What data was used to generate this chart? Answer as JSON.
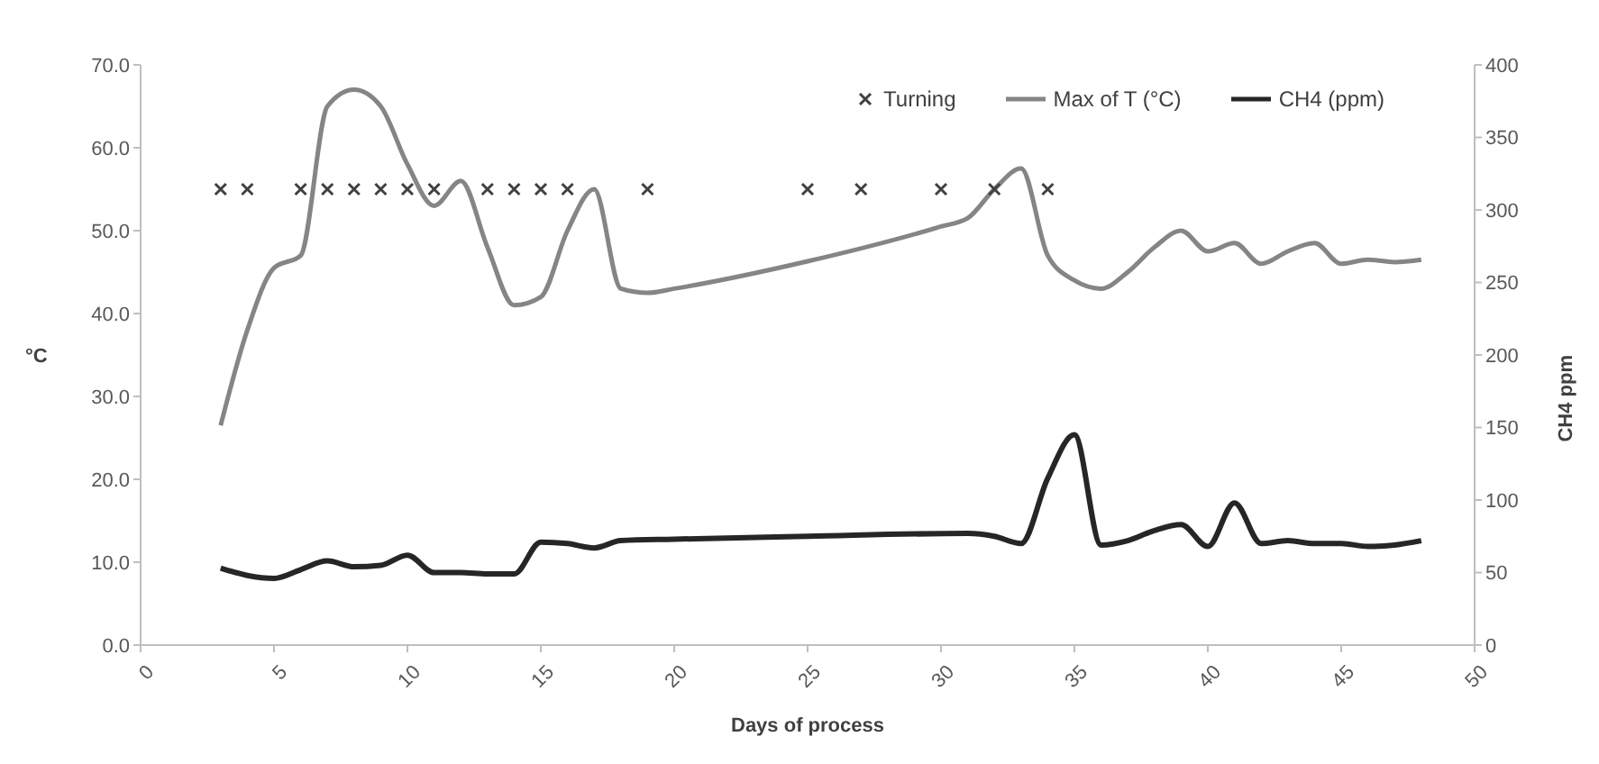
{
  "chart_data": {
    "type": "line",
    "xlabel": "Days of process",
    "ylabel": "°C",
    "y2label": "CH4 ppm",
    "legend": "top right",
    "grid": false,
    "xlim": [
      0,
      50
    ],
    "xticks": [
      0,
      5,
      10,
      15,
      20,
      25,
      30,
      35,
      40,
      45,
      50
    ],
    "ylim": [
      0,
      70
    ],
    "yticks": [
      {
        "value": 0,
        "label": "0.0"
      },
      {
        "value": 10,
        "label": "10.0"
      },
      {
        "value": 20,
        "label": "20.0"
      },
      {
        "value": 30,
        "label": "30.0"
      },
      {
        "value": 40,
        "label": "40.0"
      },
      {
        "value": 50,
        "label": "50.0"
      },
      {
        "value": 60,
        "label": "60.0"
      },
      {
        "value": 70,
        "label": "70.0"
      }
    ],
    "y2lim": [
      0,
      400
    ],
    "y2ticks": [
      0,
      50,
      100,
      150,
      200,
      250,
      300,
      350,
      400
    ],
    "series": [
      {
        "name": "Turning",
        "type": "scatter",
        "marker": "cross",
        "color": "#404040",
        "x": [
          3,
          4,
          6,
          7,
          8,
          9,
          10,
          11,
          13,
          14,
          15,
          16,
          19,
          25,
          27,
          30,
          32,
          34
        ],
        "values": [
          55,
          55,
          55,
          55,
          55,
          55,
          55,
          55,
          55,
          55,
          55,
          55,
          55,
          55,
          55,
          55,
          55,
          55
        ]
      },
      {
        "name": "Max of T (°C)",
        "color": "#858585",
        "x": [
          3,
          4,
          5,
          6,
          7,
          8,
          9,
          10,
          11,
          12,
          13,
          14,
          15,
          16,
          17,
          18,
          19,
          20,
          25,
          30,
          31,
          32,
          33,
          34,
          35,
          36,
          37,
          38,
          39,
          40,
          41,
          42,
          43,
          44,
          45,
          46,
          47,
          48
        ],
        "values": [
          26.5,
          38,
          45.5,
          47,
          65,
          67,
          65,
          58,
          53,
          56,
          48,
          41,
          42,
          50,
          55,
          43,
          42.5,
          43,
          46.3,
          50.5,
          51.5,
          55,
          57.5,
          47,
          44,
          43,
          45,
          48,
          50,
          47.5,
          48.5,
          46,
          47.5,
          48.5,
          46,
          46.5,
          46.2,
          46.5
        ]
      },
      {
        "name": "CH4 (ppm)",
        "axis": "y2",
        "color": "#262626",
        "x": [
          3,
          4,
          5,
          6,
          7,
          8,
          9,
          10,
          11,
          12,
          13,
          14,
          15,
          16,
          17,
          18,
          20,
          25,
          31,
          32,
          33,
          34,
          35,
          36,
          37,
          38,
          39,
          40,
          41,
          42,
          43,
          44,
          45,
          46,
          47,
          48
        ],
        "values": [
          53,
          48,
          46,
          52,
          58,
          54,
          55,
          62,
          50,
          50,
          49,
          49,
          71,
          70,
          67,
          72,
          73,
          75,
          77,
          75,
          70,
          115,
          145,
          69,
          72,
          79,
          83,
          68,
          98,
          70,
          72,
          70,
          70,
          68,
          69,
          72
        ]
      }
    ]
  }
}
